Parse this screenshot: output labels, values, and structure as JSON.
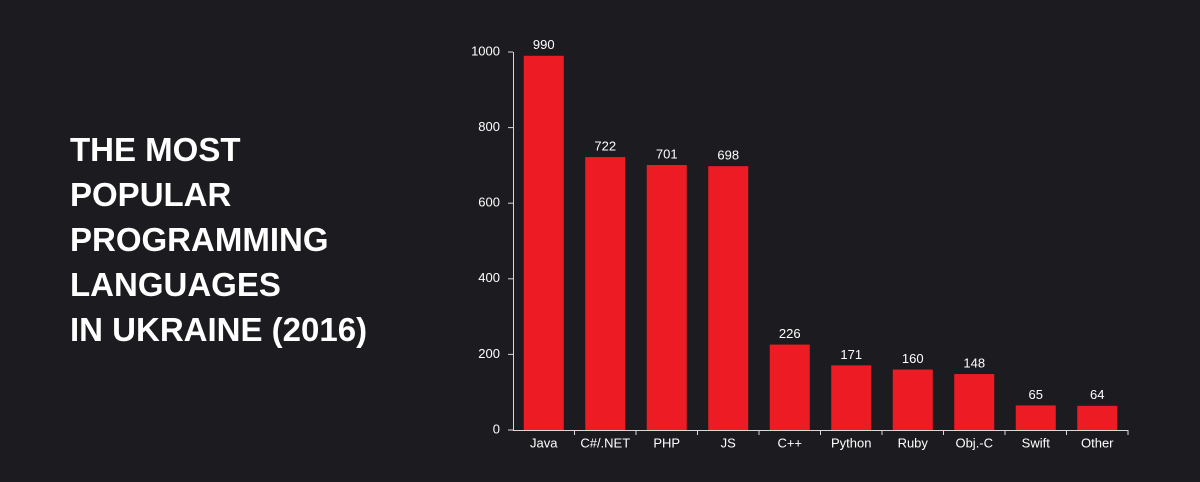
{
  "chart_data": {
    "type": "bar",
    "title": [
      "THE MOST",
      "POPULAR",
      "PROGRAMMING",
      "LANGUAGES",
      "IN UKRAINE (2016)"
    ],
    "categories": [
      "Java",
      "C#/.NET",
      "PHP",
      "JS",
      "C++",
      "Python",
      "Ruby",
      "Obj.-C",
      "Swift",
      "Other"
    ],
    "values": [
      990,
      722,
      701,
      698,
      226,
      171,
      160,
      148,
      65,
      64
    ],
    "color": "#ed1c24",
    "ylim": [
      0,
      1000
    ],
    "yticks": [
      0,
      200,
      400,
      600,
      800,
      1000
    ],
    "grid": false
  }
}
